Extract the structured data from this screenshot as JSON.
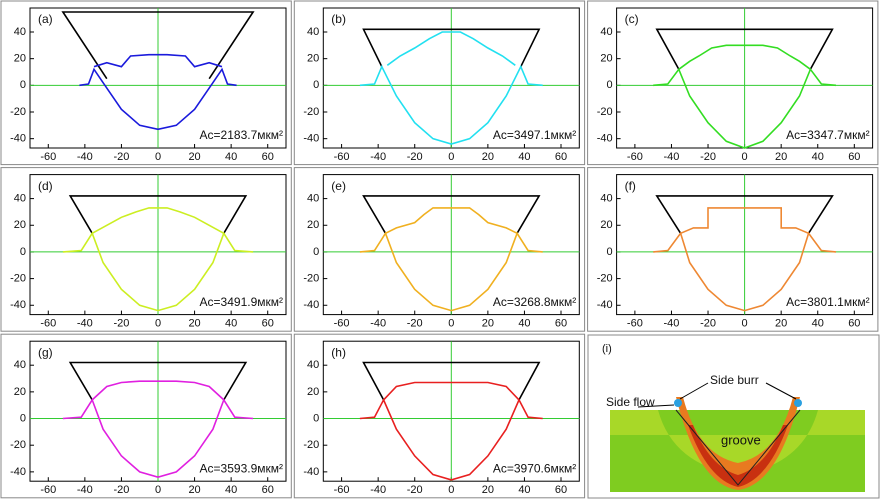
{
  "chart_data": [
    {
      "type": "line",
      "label": "(a)",
      "annotation": "Ac=2183.7мкм²",
      "xlim": [
        -70,
        70
      ],
      "ylim": [
        -47,
        58
      ],
      "xticks": [
        -60,
        -40,
        -20,
        0,
        20,
        40,
        60
      ],
      "yticks": [
        -40,
        -20,
        0,
        20,
        40
      ],
      "series": [
        {
          "color": "#000000",
          "x": [
            -28,
            -52,
            52,
            28
          ],
          "values": [
            5,
            55,
            55,
            5
          ]
        },
        {
          "color": "#1a1adc",
          "x": [
            -43,
            -38,
            -35,
            -30,
            -20,
            -10,
            0,
            10,
            20,
            30,
            35,
            38,
            43
          ],
          "values": [
            0,
            1,
            12,
            2,
            -18,
            -30,
            -33,
            -30,
            -18,
            2,
            12,
            1,
            0
          ]
        },
        {
          "color": "#1a1adc",
          "x": [
            -35,
            -28,
            -20,
            -15,
            -5,
            5,
            15,
            20,
            28,
            35
          ],
          "values": [
            14,
            17,
            14,
            22,
            23,
            23,
            22,
            14,
            17,
            14
          ]
        }
      ]
    },
    {
      "type": "line",
      "label": "(b)",
      "annotation": "Ac=3497.1мкм²",
      "xlim": [
        -70,
        70
      ],
      "ylim": [
        -47,
        58
      ],
      "xticks": [
        -60,
        -40,
        -20,
        0,
        20,
        40,
        60
      ],
      "yticks": [
        -40,
        -20,
        0,
        20,
        40
      ],
      "series": [
        {
          "color": "#000000",
          "x": [
            -38,
            -48,
            48,
            38
          ],
          "values": [
            14,
            42,
            42,
            14
          ]
        },
        {
          "color": "#22e0f0",
          "x": [
            -50,
            -42,
            -38,
            -30,
            -20,
            -10,
            0,
            10,
            20,
            30,
            38,
            42,
            50
          ],
          "values": [
            0,
            1,
            14,
            -8,
            -28,
            -40,
            -44,
            -40,
            -28,
            -8,
            14,
            1,
            0
          ]
        },
        {
          "color": "#22e0f0",
          "x": [
            -35,
            -28,
            -20,
            -12,
            -5,
            5,
            12,
            20,
            28,
            35
          ],
          "values": [
            15,
            22,
            28,
            35,
            40,
            40,
            35,
            28,
            22,
            15
          ]
        }
      ]
    },
    {
      "type": "line",
      "label": "(c)",
      "annotation": "Ac=3347.7мкм²",
      "xlim": [
        -70,
        70
      ],
      "ylim": [
        -47,
        58
      ],
      "xticks": [
        -60,
        -40,
        -20,
        0,
        20,
        40,
        60
      ],
      "yticks": [
        -40,
        -20,
        0,
        20,
        40
      ],
      "series": [
        {
          "color": "#000000",
          "x": [
            -36,
            -48,
            48,
            36
          ],
          "values": [
            12,
            42,
            42,
            12
          ]
        },
        {
          "color": "#33dd22",
          "x": [
            -50,
            -42,
            -36,
            -30,
            -20,
            -10,
            0,
            10,
            20,
            30,
            36,
            42,
            50
          ],
          "values": [
            0,
            1,
            12,
            -8,
            -28,
            -42,
            -47,
            -42,
            -28,
            -8,
            12,
            1,
            0
          ]
        },
        {
          "color": "#33dd22",
          "x": [
            -36,
            -30,
            -25,
            -18,
            -10,
            0,
            10,
            18,
            25,
            30,
            36
          ],
          "values": [
            12,
            18,
            22,
            28,
            30,
            30,
            30,
            28,
            22,
            18,
            12
          ]
        }
      ]
    },
    {
      "type": "line",
      "label": "(d)",
      "annotation": "Ac=3491.9мкм²",
      "xlim": [
        -70,
        70
      ],
      "ylim": [
        -47,
        58
      ],
      "xticks": [
        -60,
        -40,
        -20,
        0,
        20,
        40,
        60
      ],
      "yticks": [
        -40,
        -20,
        0,
        20,
        40
      ],
      "series": [
        {
          "color": "#000000",
          "x": [
            -36,
            -48,
            48,
            36
          ],
          "values": [
            14,
            42,
            42,
            14
          ]
        },
        {
          "color": "#ccee22",
          "x": [
            -52,
            -42,
            -36,
            -30,
            -20,
            -10,
            0,
            10,
            20,
            30,
            36,
            42,
            52
          ],
          "values": [
            0,
            1,
            14,
            -8,
            -28,
            -40,
            -44,
            -40,
            -28,
            -8,
            14,
            1,
            0
          ]
        },
        {
          "color": "#ccee22",
          "x": [
            -36,
            -28,
            -20,
            -12,
            -5,
            5,
            12,
            20,
            28,
            36
          ],
          "values": [
            14,
            20,
            26,
            30,
            33,
            33,
            30,
            26,
            20,
            14
          ]
        }
      ]
    },
    {
      "type": "line",
      "label": "(e)",
      "annotation": "Ac=3268.8мкм²",
      "xlim": [
        -70,
        70
      ],
      "ylim": [
        -47,
        58
      ],
      "xticks": [
        -60,
        -40,
        -20,
        0,
        20,
        40,
        60
      ],
      "yticks": [
        -40,
        -20,
        0,
        20,
        40
      ],
      "series": [
        {
          "color": "#000000",
          "x": [
            -36,
            -48,
            48,
            36
          ],
          "values": [
            14,
            42,
            42,
            14
          ]
        },
        {
          "color": "#f0b020",
          "x": [
            -50,
            -42,
            -36,
            -30,
            -20,
            -10,
            0,
            10,
            20,
            30,
            36,
            42,
            50
          ],
          "values": [
            0,
            1,
            14,
            -8,
            -28,
            -40,
            -44,
            -40,
            -28,
            -8,
            14,
            1,
            0
          ]
        },
        {
          "color": "#f0b020",
          "x": [
            -36,
            -30,
            -20,
            -15,
            -10,
            10,
            15,
            20,
            30,
            36
          ],
          "values": [
            14,
            18,
            22,
            28,
            33,
            33,
            28,
            22,
            18,
            14
          ]
        }
      ]
    },
    {
      "type": "line",
      "label": "(f)",
      "annotation": "Ac=3801.1мкм²",
      "xlim": [
        -70,
        70
      ],
      "ylim": [
        -47,
        58
      ],
      "xticks": [
        -60,
        -40,
        -20,
        0,
        20,
        40,
        60
      ],
      "yticks": [
        -40,
        -20,
        0,
        20,
        40
      ],
      "series": [
        {
          "color": "#000000",
          "x": [
            -35,
            -48,
            48,
            35
          ],
          "values": [
            14,
            42,
            42,
            14
          ]
        },
        {
          "color": "#ee8833",
          "x": [
            -50,
            -42,
            -35,
            -30,
            -20,
            -10,
            0,
            10,
            20,
            30,
            35,
            42,
            50
          ],
          "values": [
            0,
            1,
            14,
            -8,
            -28,
            -40,
            -44,
            -40,
            -28,
            -8,
            14,
            1,
            0
          ]
        },
        {
          "color": "#ee8833",
          "x": [
            -35,
            -28,
            -20,
            -20,
            -10,
            10,
            20,
            20,
            28,
            35
          ],
          "values": [
            14,
            18,
            18,
            33,
            33,
            33,
            33,
            18,
            18,
            14
          ]
        }
      ]
    },
    {
      "type": "line",
      "label": "(g)",
      "annotation": "Ac=3593.9мкм²",
      "xlim": [
        -70,
        70
      ],
      "ylim": [
        -47,
        58
      ],
      "xticks": [
        -60,
        -40,
        -20,
        0,
        20,
        40,
        60
      ],
      "yticks": [
        -40,
        -20,
        0,
        20,
        40
      ],
      "series": [
        {
          "color": "#000000",
          "x": [
            -36,
            -48,
            48,
            36
          ],
          "values": [
            14,
            42,
            42,
            14
          ]
        },
        {
          "color": "#e020e0",
          "x": [
            -52,
            -42,
            -36,
            -30,
            -20,
            -10,
            0,
            10,
            20,
            30,
            36,
            42,
            52
          ],
          "values": [
            0,
            1,
            14,
            -8,
            -28,
            -40,
            -44,
            -40,
            -28,
            -8,
            14,
            1,
            0
          ]
        },
        {
          "color": "#e020e0",
          "x": [
            -36,
            -28,
            -20,
            -10,
            0,
            10,
            20,
            28,
            36
          ],
          "values": [
            14,
            24,
            27,
            28,
            28,
            28,
            27,
            24,
            14
          ]
        }
      ]
    },
    {
      "type": "line",
      "label": "(h)",
      "annotation": "Ac=3970.6мкм²",
      "xlim": [
        -70,
        70
      ],
      "ylim": [
        -47,
        58
      ],
      "xticks": [
        -60,
        -40,
        -20,
        0,
        20,
        40,
        60
      ],
      "yticks": [
        -40,
        -20,
        0,
        20,
        40
      ],
      "series": [
        {
          "color": "#000000",
          "x": [
            -37,
            -48,
            48,
            37
          ],
          "values": [
            14,
            42,
            42,
            14
          ]
        },
        {
          "color": "#e82020",
          "x": [
            -50,
            -42,
            -37,
            -30,
            -20,
            -10,
            0,
            10,
            20,
            30,
            37,
            42,
            50
          ],
          "values": [
            0,
            1,
            14,
            -8,
            -28,
            -42,
            -46,
            -42,
            -28,
            -8,
            14,
            1,
            0
          ]
        },
        {
          "color": "#e82020",
          "x": [
            -37,
            -30,
            -20,
            -10,
            0,
            10,
            20,
            30,
            37
          ],
          "values": [
            14,
            24,
            27,
            27,
            27,
            27,
            27,
            24,
            14
          ]
        }
      ]
    }
  ],
  "image_panel": {
    "label": "(i)",
    "annotations": [
      "Side flow",
      "Side burr",
      "groove"
    ]
  }
}
